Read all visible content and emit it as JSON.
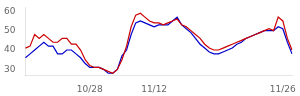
{
  "chart_data": {
    "type": "line",
    "categories": [
      null,
      null,
      null,
      null,
      null,
      null,
      null,
      null,
      null,
      null,
      null,
      null,
      null,
      null,
      "10/28",
      null,
      null,
      null,
      null,
      null,
      null,
      null,
      null,
      null,
      null,
      null,
      null,
      null,
      "11/12",
      null,
      null,
      null,
      null,
      null,
      null,
      null,
      null,
      null,
      null,
      null,
      null,
      null,
      null,
      null,
      null,
      null,
      null,
      null,
      null,
      null,
      null,
      null,
      null,
      null,
      null,
      null,
      "11/26",
      null,
      null
    ],
    "series": [
      {
        "color": "#cc0000",
        "values": [
          41,
          42,
          48,
          46,
          48,
          46,
          44,
          44,
          46,
          46,
          43,
          43,
          40,
          35,
          32,
          31,
          31,
          30,
          29,
          28,
          30,
          35,
          42,
          52,
          58,
          59,
          57,
          55,
          54,
          54,
          53,
          54,
          55,
          56,
          53,
          52,
          50,
          48,
          46,
          43,
          41,
          40,
          40,
          41,
          42,
          43,
          44,
          45,
          46,
          47,
          48,
          49,
          50,
          51,
          50,
          57,
          55,
          46,
          40
        ]
      },
      {
        "color": "#0000cc",
        "values": [
          36,
          38,
          40,
          42,
          44,
          42,
          42,
          38,
          38,
          40,
          40,
          38,
          36,
          33,
          31,
          31,
          31,
          30,
          28,
          28,
          30,
          37,
          40,
          48,
          54,
          55,
          54,
          53,
          52,
          53,
          53,
          53,
          55,
          57,
          53,
          51,
          49,
          46,
          43,
          41,
          39,
          38,
          38,
          39,
          40,
          41,
          43,
          44,
          46,
          47,
          48,
          49,
          50,
          50,
          50,
          52,
          51,
          44,
          38
        ]
      }
    ],
    "ylim": [
      27,
      62
    ],
    "yticks": [
      30,
      40,
      50,
      60
    ],
    "grid": false
  }
}
